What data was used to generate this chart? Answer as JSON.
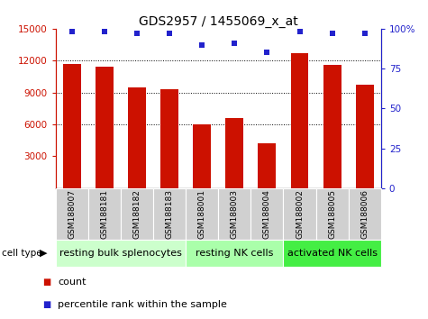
{
  "title": "GDS2957 / 1455069_x_at",
  "samples": [
    "GSM188007",
    "GSM188181",
    "GSM188182",
    "GSM188183",
    "GSM188001",
    "GSM188003",
    "GSM188004",
    "GSM188002",
    "GSM188005",
    "GSM188006"
  ],
  "counts": [
    11700,
    11400,
    9500,
    9300,
    6000,
    6600,
    4200,
    12700,
    11600,
    9700
  ],
  "percentiles": [
    98,
    98,
    97,
    97,
    90,
    91,
    85,
    98,
    97,
    97
  ],
  "bar_color": "#CC1100",
  "dot_color": "#2222CC",
  "ylim_left": [
    0,
    15000
  ],
  "yaxis_min_display": 3000,
  "ylim_right": [
    0,
    100
  ],
  "yticks_left": [
    3000,
    6000,
    9000,
    12000,
    15000
  ],
  "yticks_right": [
    0,
    25,
    50,
    75,
    100
  ],
  "groups": [
    {
      "label": "resting bulk splenocytes",
      "start": 0,
      "end": 3,
      "color": "#ccffcc"
    },
    {
      "label": "resting NK cells",
      "start": 4,
      "end": 6,
      "color": "#aaffaa"
    },
    {
      "label": "activated NK cells",
      "start": 7,
      "end": 9,
      "color": "#44ee44"
    }
  ],
  "cell_type_label": "cell type",
  "legend_count_label": "count",
  "legend_percentile_label": "percentile rank within the sample",
  "title_fontsize": 10,
  "tick_fontsize": 7.5,
  "sample_fontsize": 6.5,
  "group_label_fontsize": 8,
  "legend_fontsize": 8,
  "tick_bg_color": "#d0d0d0"
}
